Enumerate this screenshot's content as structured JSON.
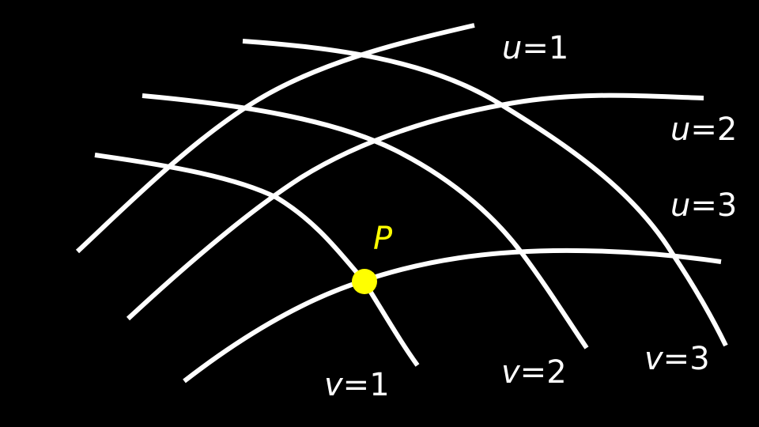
{
  "colors": {
    "background": "#000000",
    "curve": "#ffffff",
    "highlight": "#ffff00"
  },
  "u_curves": [
    {
      "var": "u",
      "eq": "=",
      "value": "1"
    },
    {
      "var": "u",
      "eq": "=",
      "value": "2"
    },
    {
      "var": "u",
      "eq": "=",
      "value": "3"
    }
  ],
  "v_curves": [
    {
      "var": "v",
      "eq": "=",
      "value": "1"
    },
    {
      "var": "v",
      "eq": "=",
      "value": "2"
    },
    {
      "var": "v",
      "eq": "=",
      "value": "3"
    }
  ],
  "point": {
    "label": "P"
  }
}
